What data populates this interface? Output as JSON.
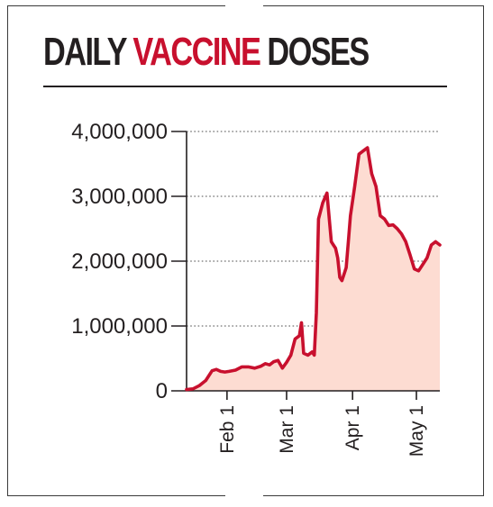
{
  "title": {
    "prefix": "DAILY",
    "accent": "VACCINE",
    "suffix": "DOSES"
  },
  "colors": {
    "line": "#c8102e",
    "area": "#fddcd2",
    "text": "#231f20",
    "grid": "#888888"
  },
  "chart_data": {
    "type": "area",
    "title": "DAILY VACCINE DOSES",
    "xlabel": "",
    "ylabel": "",
    "x_range": [
      "2021-01-13",
      "2021-05-12"
    ],
    "ylim": [
      0,
      4000000
    ],
    "yticks": [
      0,
      1000000,
      2000000,
      3000000,
      4000000
    ],
    "ytick_labels": [
      "0",
      "1,000,000",
      "2,000,000",
      "3,000,000",
      "4,000,000"
    ],
    "xticks": [
      "2021-02-01",
      "2021-03-01",
      "2021-04-01",
      "2021-05-01"
    ],
    "xtick_labels": [
      "Feb 1",
      "Mar 1",
      "Apr 1",
      "May 1"
    ],
    "grid": true,
    "series": [
      {
        "x": [
          "2021-01-13",
          "2021-01-16",
          "2021-01-19",
          "2021-01-22",
          "2021-01-25",
          "2021-01-27",
          "2021-01-29",
          "2021-01-31",
          "2021-02-02",
          "2021-02-05",
          "2021-02-08",
          "2021-02-11",
          "2021-02-14",
          "2021-02-17",
          "2021-02-19",
          "2021-02-21",
          "2021-02-23",
          "2021-02-25",
          "2021-02-27",
          "2021-03-01",
          "2021-03-03",
          "2021-03-05",
          "2021-03-07",
          "2021-03-08",
          "2021-03-09",
          "2021-03-11",
          "2021-03-13",
          "2021-03-14",
          "2021-03-15",
          "2021-03-16",
          "2021-03-18",
          "2021-03-20",
          "2021-03-22",
          "2021-03-23",
          "2021-03-24",
          "2021-03-25",
          "2021-03-26",
          "2021-03-27",
          "2021-03-29",
          "2021-03-30",
          "2021-03-31",
          "2021-04-02",
          "2021-04-04",
          "2021-04-06",
          "2021-04-08",
          "2021-04-10",
          "2021-04-12",
          "2021-04-14",
          "2021-04-16",
          "2021-04-18",
          "2021-04-20",
          "2021-04-22",
          "2021-04-24",
          "2021-04-26",
          "2021-04-28",
          "2021-04-30",
          "2021-05-02",
          "2021-05-04",
          "2021-05-06",
          "2021-05-08",
          "2021-05-10",
          "2021-05-12"
        ],
        "values": [
          20000,
          30000,
          80000,
          160000,
          310000,
          330000,
          300000,
          290000,
          300000,
          320000,
          370000,
          370000,
          350000,
          380000,
          420000,
          400000,
          450000,
          470000,
          350000,
          440000,
          550000,
          800000,
          850000,
          1050000,
          580000,
          550000,
          600000,
          550000,
          1200000,
          2650000,
          2900000,
          3050000,
          2300000,
          2250000,
          2200000,
          2050000,
          1750000,
          1700000,
          1900000,
          2300000,
          2700000,
          3150000,
          3650000,
          3700000,
          3750000,
          3350000,
          3150000,
          2700000,
          2650000,
          2550000,
          2560000,
          2500000,
          2420000,
          2300000,
          2100000,
          1880000,
          1850000,
          1950000,
          2050000,
          2250000,
          2300000,
          2250000
        ]
      }
    ]
  }
}
